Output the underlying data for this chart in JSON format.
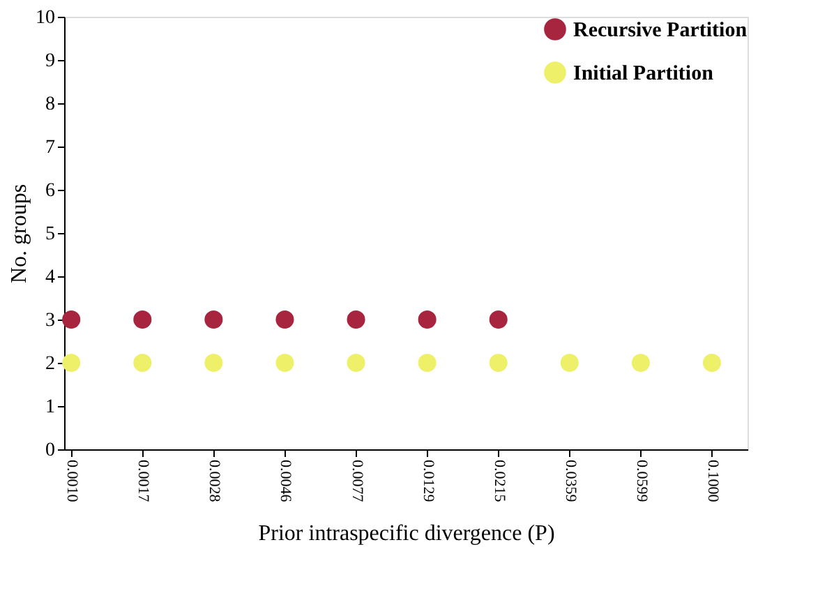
{
  "chart_data": {
    "type": "scatter",
    "xlabel": "Prior intraspecific divergence  (P)",
    "ylabel": "No. groups",
    "categories": [
      "0.0010",
      "0.0017",
      "0.0028",
      "0.0046",
      "0.0077",
      "0.0129",
      "0.0215",
      "0.0359",
      "0.0599",
      "0.1000"
    ],
    "series": [
      {
        "name": "Recursive Partition",
        "color": "#a8253f",
        "values": [
          3,
          3,
          3,
          3,
          3,
          3,
          3,
          null,
          null,
          null
        ]
      },
      {
        "name": "Initial Partition",
        "color": "#eef06a",
        "values": [
          2,
          2,
          2,
          2,
          2,
          2,
          2,
          2,
          2,
          2
        ]
      }
    ],
    "ylim": [
      0,
      10
    ],
    "yticks": [
      0,
      1,
      2,
      3,
      4,
      5,
      6,
      7,
      8,
      9,
      10
    ],
    "grid": false,
    "legend": "top right",
    "marker": "circle"
  }
}
